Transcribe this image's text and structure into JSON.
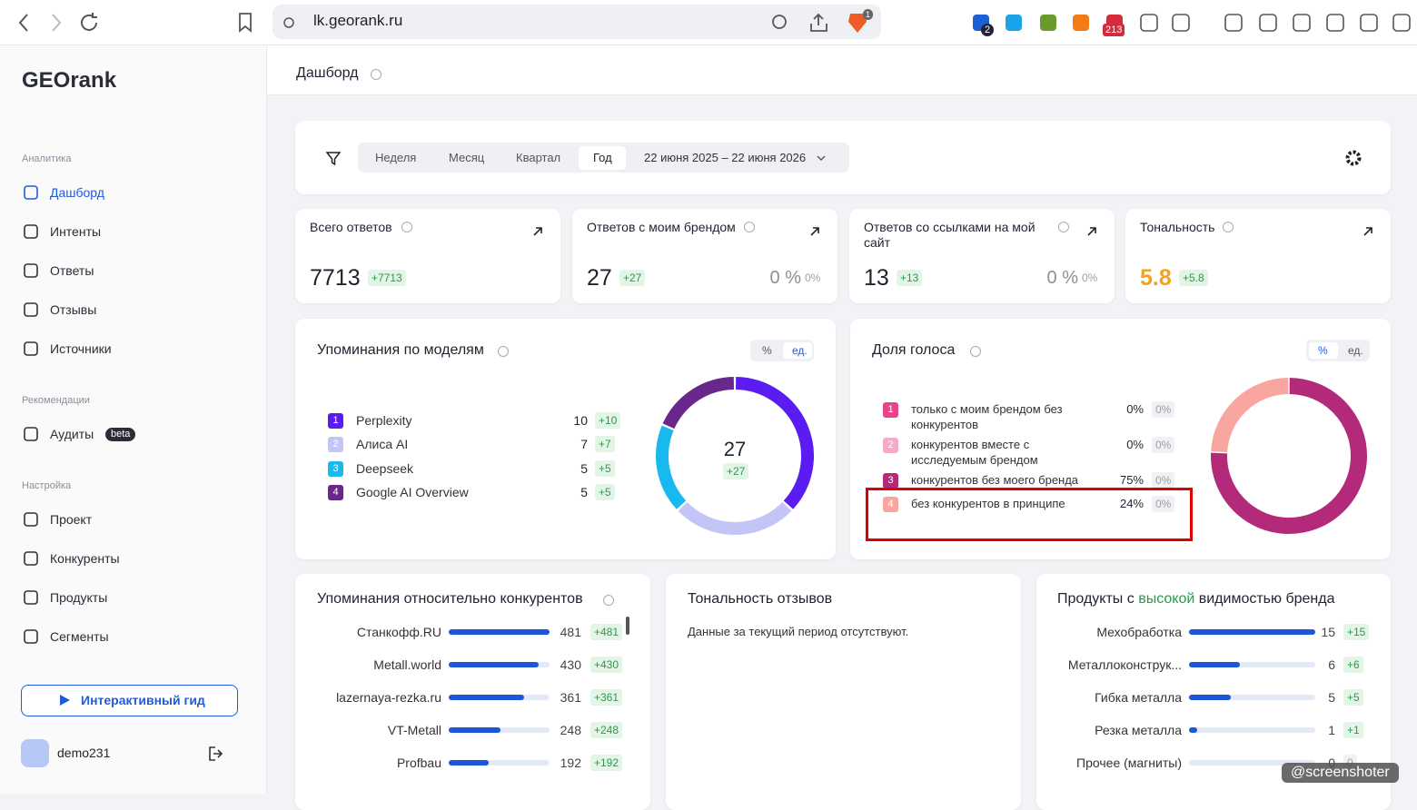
{
  "browser": {
    "url": "lk.georank.ru",
    "badges": [
      "2",
      "213",
      "1"
    ]
  },
  "sidebar": {
    "logo": "GEOrank",
    "sections": [
      {
        "title": "Аналитика",
        "items": [
          "Дашборд",
          "Интенты",
          "Ответы",
          "Отзывы",
          "Источники"
        ]
      },
      {
        "title": "Рекомендации",
        "items": [
          "Аудиты"
        ]
      },
      {
        "title": "Настройка",
        "items": [
          "Проект",
          "Конкуренты",
          "Продукты",
          "Сегменты"
        ]
      }
    ],
    "beta": "beta",
    "guide": "Интерактивный гид",
    "user": "demo231"
  },
  "header": {
    "title": "Дашборд"
  },
  "filters": {
    "periods": [
      "Неделя",
      "Месяц",
      "Квартал",
      "Год"
    ],
    "selected": "Год",
    "range": "22 июня 2025 – 22 июня 2026"
  },
  "kpis": [
    {
      "label": "Всего ответов",
      "value": 7713,
      "delta": "+7713"
    },
    {
      "label": "Ответов с моим брендом",
      "value": 27,
      "delta": "+27",
      "share": "0 %",
      "share_delta": "0%"
    },
    {
      "label": "Ответов со ссылками на мой сайт",
      "value": 13,
      "delta": "+13",
      "share": "0 %",
      "share_delta": "0%"
    },
    {
      "label": "Тональность",
      "value": 5.8,
      "delta": "+5.8",
      "color": "#f6a11a"
    }
  ],
  "models": {
    "title": "Упоминания по моделям",
    "toggle": [
      "%",
      "ед."
    ],
    "selected": "ед.",
    "total": 27,
    "total_delta": "+27",
    "items": [
      {
        "rank": 1,
        "name": "Perplexity",
        "value": 10,
        "delta": "+10",
        "color": "#5b1cf2"
      },
      {
        "rank": 2,
        "name": "Алиса AI",
        "value": 7,
        "delta": "+7",
        "color": "#c2c5f6"
      },
      {
        "rank": 3,
        "name": "Deepseek",
        "value": 5,
        "delta": "+5",
        "color": "#17b9ee"
      },
      {
        "rank": 4,
        "name": "Google AI Overview",
        "value": 5,
        "delta": "+5",
        "color": "#6a278b"
      }
    ]
  },
  "voice": {
    "title": "Доля голоса",
    "toggle": [
      "%",
      "ед."
    ],
    "selected": "%",
    "items": [
      {
        "rank": 1,
        "name": "только с моим брендом без конкурентов",
        "value": 0,
        "value_label": "0%",
        "delta": "0%",
        "color": "#e8448b"
      },
      {
        "rank": 2,
        "name": "конкурентов вместе с исследуемым брендом",
        "value": 0,
        "value_label": "0%",
        "delta": "0%",
        "color": "#f6a9c8"
      },
      {
        "rank": 3,
        "name": "конкурентов без моего бренда",
        "value": 75,
        "value_label": "75%",
        "delta": "0%",
        "color": "#b42a7b"
      },
      {
        "rank": 4,
        "name": "без конкурентов в принципе",
        "value": 24,
        "value_label": "24%",
        "delta": "0%",
        "color": "#f9a6a1"
      }
    ]
  },
  "competitors": {
    "title": "Упоминания относительно конкурентов",
    "items": [
      {
        "name": "Станкофф.RU",
        "value": 481,
        "delta": "+481"
      },
      {
        "name": "Metall.world",
        "value": 430,
        "delta": "+430"
      },
      {
        "name": "lazernaya-rezka.ru",
        "value": 361,
        "delta": "+361"
      },
      {
        "name": "VT-Metall",
        "value": 248,
        "delta": "+248"
      },
      {
        "name": "Profbau",
        "value": 192,
        "delta": "+192"
      }
    ]
  },
  "reviews": {
    "title": "Тональность отзывов",
    "empty": "Данные за текущий период отсутствуют."
  },
  "products": {
    "title": [
      "Продукты с ",
      "высокой",
      " видимостью бренда"
    ],
    "items": [
      {
        "name": "Мехобработка",
        "value": 15,
        "delta": "+15"
      },
      {
        "name": "Металлоконструк...",
        "value": 6,
        "delta": "+6"
      },
      {
        "name": "Гибка металла",
        "value": 5,
        "delta": "+5"
      },
      {
        "name": "Резка металла",
        "value": 1,
        "delta": "+1"
      },
      {
        "name": "Прочее (магниты)",
        "value": 0,
        "delta": "0"
      }
    ]
  },
  "watermark": "@screenshoter"
}
